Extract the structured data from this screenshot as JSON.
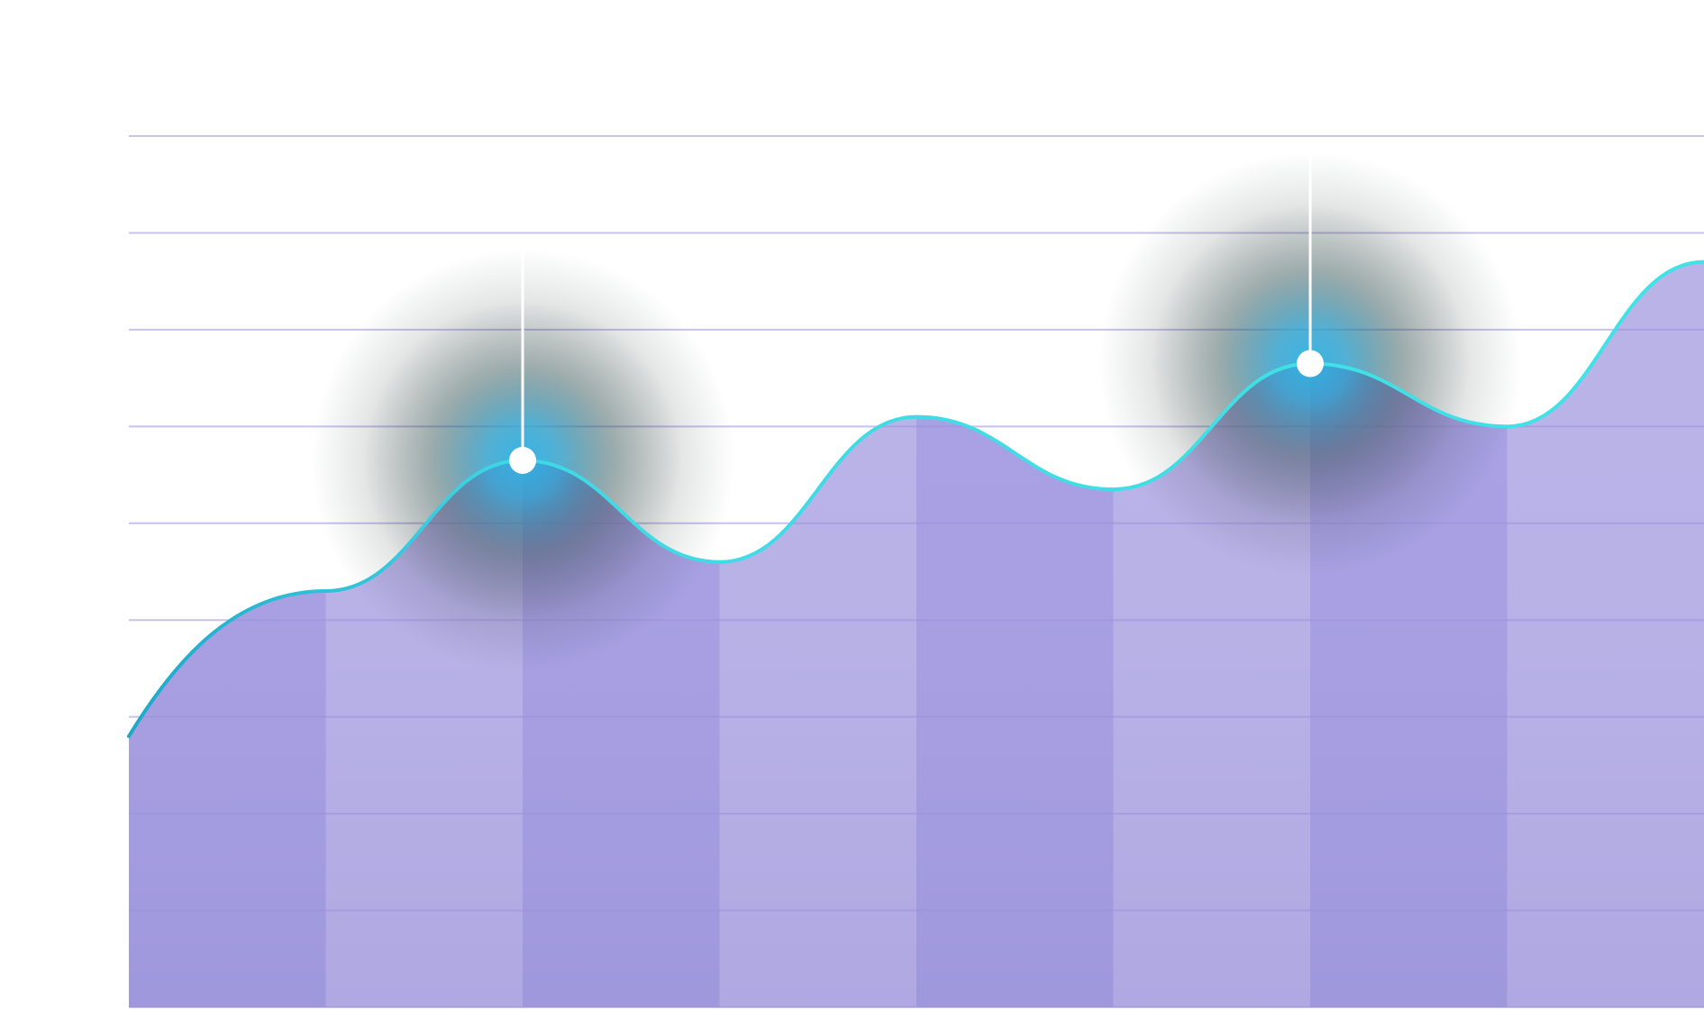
{
  "chart_data": {
    "type": "area",
    "title": "",
    "xlabel": "",
    "ylabel": "",
    "x": [
      0,
      1,
      2,
      3,
      4,
      5,
      6,
      7,
      8
    ],
    "series": [
      {
        "values": [
          2.8,
          4.3,
          5.65,
          4.6,
          6.1,
          5.35,
          6.65,
          6.0,
          7.7
        ]
      }
    ],
    "highlighted_indices": [
      2,
      6
    ],
    "ylim": [
      0,
      9
    ],
    "xlim": [
      0,
      8
    ],
    "grid": true,
    "legend": "none",
    "colors": {
      "line": "#3FD9E6",
      "line_dark": "#1FA9C9",
      "fill_light": "#B9B2E8",
      "fill_dark": "#A79FE3",
      "grid": "#9B8FDB",
      "marker": "#FFFFFF",
      "glow_center": "#2AB3E6",
      "glow_halo": "#1F2A2A"
    }
  }
}
